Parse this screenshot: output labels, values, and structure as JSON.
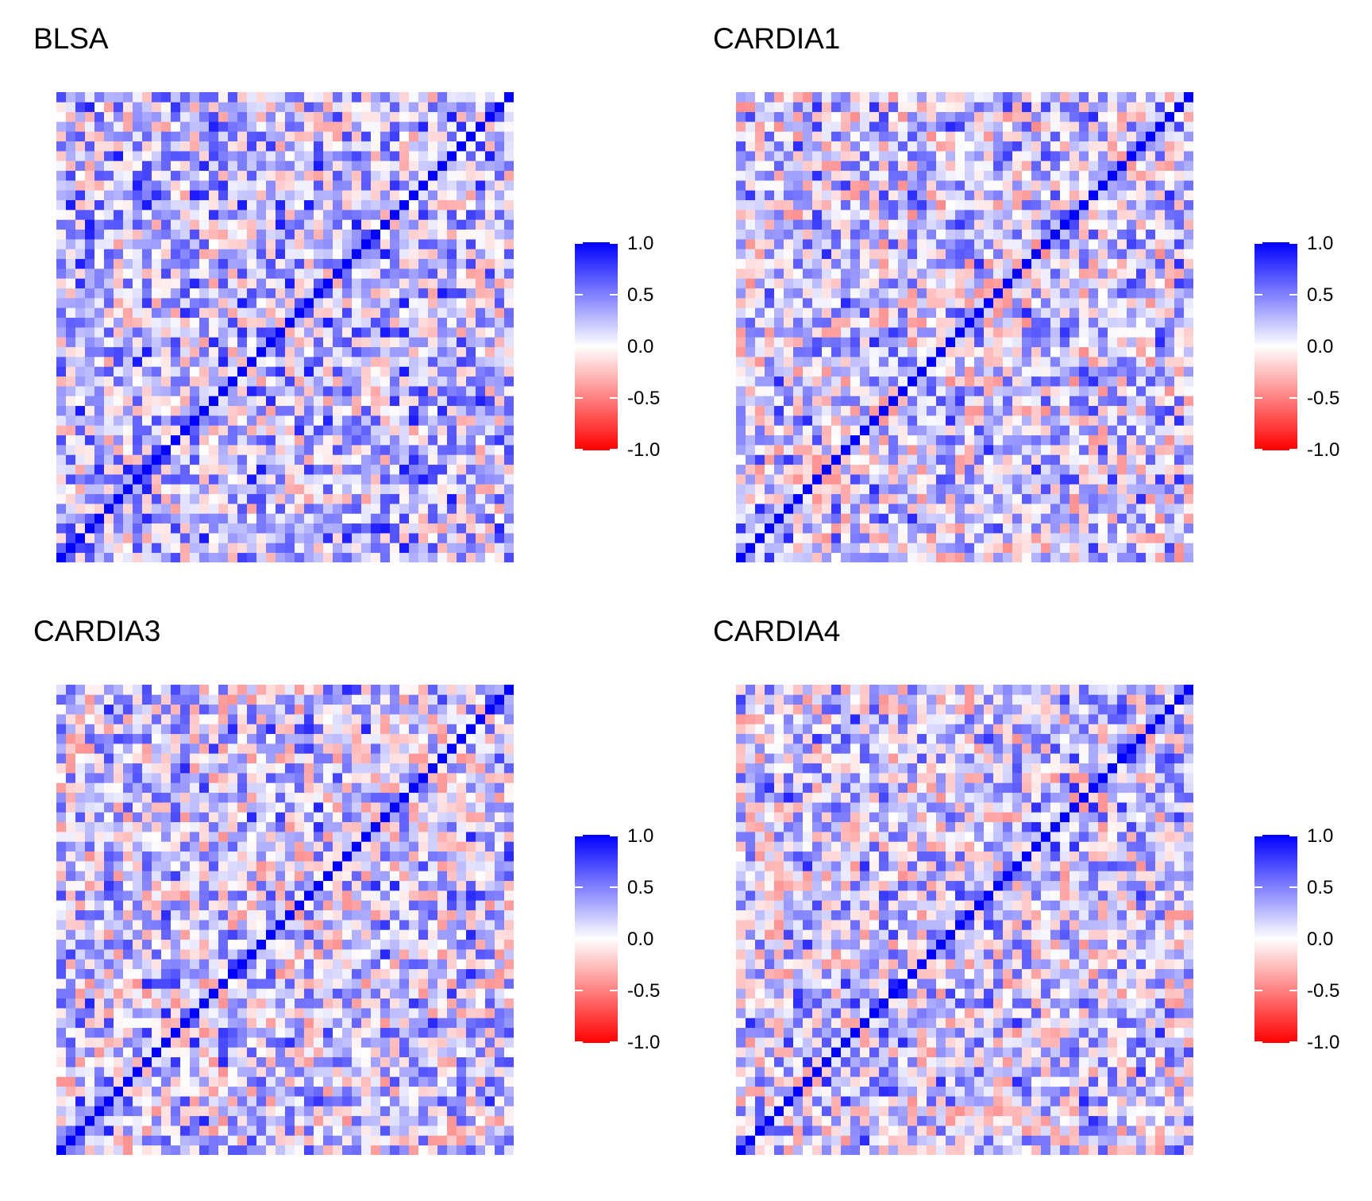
{
  "colors": {
    "negative": "#FF0000",
    "zero": "#FFFFFF",
    "positive": "#0000FF"
  },
  "legend": {
    "ticks": [
      "1.0",
      "0.5",
      "0.0",
      "-0.5",
      "-1.0"
    ]
  },
  "chart_data": [
    {
      "type": "heatmap",
      "title": "BLSA",
      "matrix_size": 48,
      "value_range": [
        -1.0,
        1.0
      ],
      "diagonal_value": 1.0,
      "color_scale": "red-white-blue diverging",
      "mean_offdiag_correlation": 0.18,
      "description_of_values": "pairwise correlation matrix, values mostly between -0.6 and 0.8"
    },
    {
      "type": "heatmap",
      "title": "CARDIA1",
      "matrix_size": 48,
      "value_range": [
        -1.0,
        1.0
      ],
      "diagonal_value": 1.0,
      "color_scale": "red-white-blue diverging",
      "mean_offdiag_correlation": 0.1
    },
    {
      "type": "heatmap",
      "title": "CARDIA3",
      "matrix_size": 48,
      "value_range": [
        -1.0,
        1.0
      ],
      "diagonal_value": 1.0,
      "color_scale": "red-white-blue diverging",
      "mean_offdiag_correlation": 0.12
    },
    {
      "type": "heatmap",
      "title": "CARDIA4",
      "matrix_size": 48,
      "value_range": [
        -1.0,
        1.0
      ],
      "diagonal_value": 1.0,
      "color_scale": "red-white-blue diverging",
      "mean_offdiag_correlation": 0.12
    }
  ]
}
